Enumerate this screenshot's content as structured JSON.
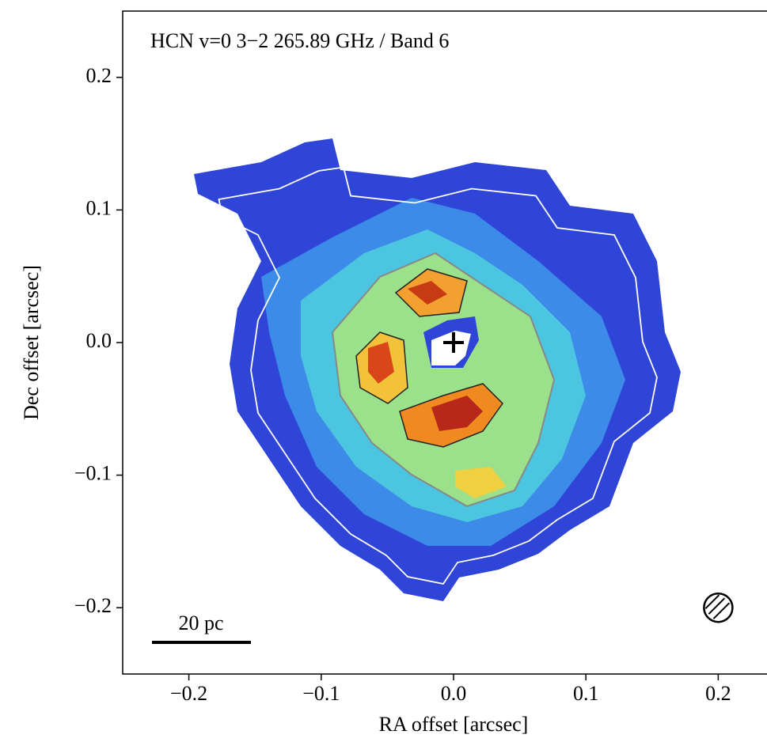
{
  "chart_data": {
    "type": "image",
    "annotation": "HCN v=0 3−2 265.89 GHz / Band 6",
    "xlabel": "RA offset [arcsec]",
    "ylabel": "Dec offset [arcsec]",
    "scale_bar_label": "20 pc",
    "xlim": [
      -0.25,
      0.25
    ],
    "ylim": [
      -0.25,
      0.25
    ],
    "xticks": [
      {
        "value": -0.2,
        "label": "−0.2"
      },
      {
        "value": -0.1,
        "label": "−0.1"
      },
      {
        "value": 0,
        "label": "0.0"
      },
      0.1,
      0.2
    ],
    "yticks": [
      {
        "value": -0.2,
        "label": "−0.2"
      },
      {
        "value": -0.1,
        "label": "−0.1"
      },
      {
        "value": 0,
        "label": "0.0"
      },
      0.1,
      0.2
    ],
    "center_marker": {
      "x": 0,
      "y": 0
    },
    "beam": {
      "x": 0.2,
      "y": -0.2
    }
  }
}
